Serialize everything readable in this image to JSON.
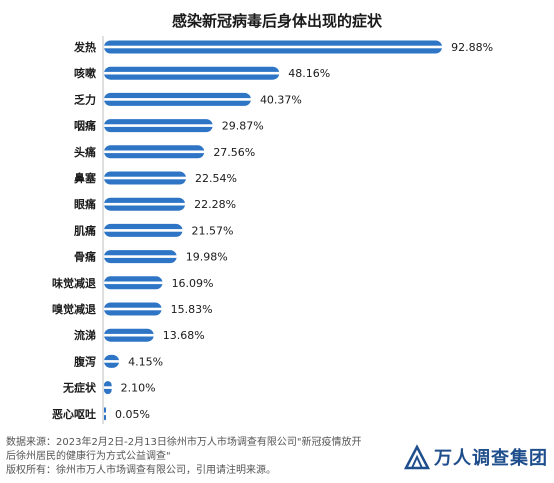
{
  "chart_data": {
    "type": "bar",
    "orientation": "horizontal",
    "title": "感染新冠病毒后身体出现的症状",
    "categories": [
      "发热",
      "咳嗽",
      "乏力",
      "咽痛",
      "头痛",
      "鼻塞",
      "眼痛",
      "肌痛",
      "骨痛",
      "味觉减退",
      "嗅觉减退",
      "流涕",
      "腹泻",
      "无症状",
      "恶心呕吐"
    ],
    "values": [
      92.88,
      48.16,
      40.37,
      29.87,
      27.56,
      22.54,
      22.28,
      21.57,
      19.98,
      16.09,
      15.83,
      13.68,
      4.15,
      2.1,
      0.05
    ],
    "value_labels": [
      "92.88%",
      "48.16%",
      "40.37%",
      "29.87%",
      "27.56%",
      "22.54%",
      "22.28%",
      "21.57%",
      "19.98%",
      "16.09%",
      "15.83%",
      "13.68%",
      "4.15%",
      "2.10%",
      "0.05%"
    ],
    "xlim": [
      0,
      100
    ],
    "grid": false,
    "legend": "none",
    "bar_color": "#2e75c6",
    "bar_highlight": "#ffffff"
  },
  "footer": {
    "line1": "数据来源：2023年2月2日-2月13日徐州市万人市场调查有限公司\"新冠疫情放开",
    "line2": "后徐州居民的健康行为方式公益调查\"",
    "line3": "版权所有：徐州市万人市场调查有限公司，引用请注明来源。"
  },
  "logo": {
    "text": "万人调查集团",
    "color": "#1f4e8c"
  }
}
